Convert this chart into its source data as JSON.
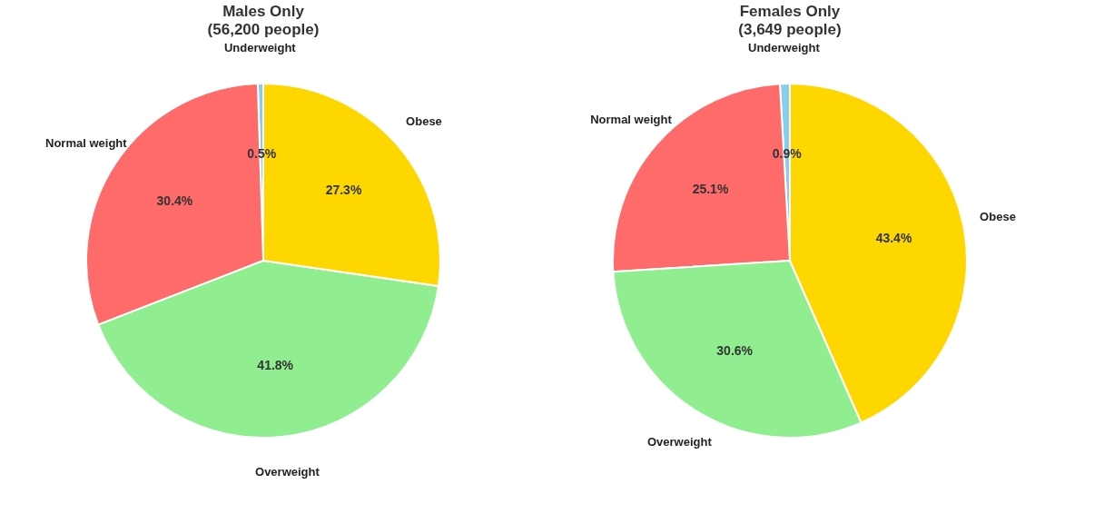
{
  "chart_data": [
    {
      "type": "pie",
      "title": "Males Only",
      "subtitle": "(56,200 people)",
      "categories": [
        "Underweight",
        "Normal weight",
        "Overweight",
        "Obese"
      ],
      "values": [
        0.5,
        30.4,
        41.8,
        27.3
      ],
      "colors": [
        "#87ceeb",
        "#ff6b6b",
        "#90ee90",
        "#ffd700"
      ],
      "value_labels": [
        "0.5%",
        "30.4%",
        "41.8%",
        "27.3%"
      ]
    },
    {
      "type": "pie",
      "title": "Females Only",
      "subtitle": "(3,649 people)",
      "categories": [
        "Underweight",
        "Normal weight",
        "Overweight",
        "Obese"
      ],
      "values": [
        0.9,
        25.1,
        30.6,
        43.4
      ],
      "colors": [
        "#87ceeb",
        "#ff6b6b",
        "#90ee90",
        "#ffd700"
      ],
      "value_labels": [
        "0.9%",
        "25.1%",
        "30.6%",
        "43.4%"
      ]
    }
  ]
}
